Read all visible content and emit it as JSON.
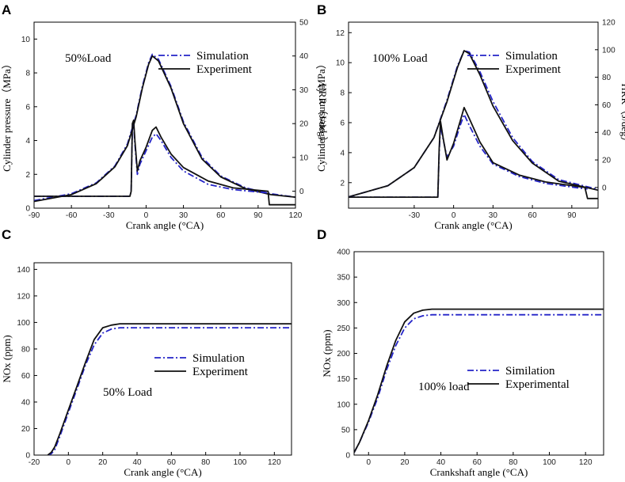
{
  "chart_data": [
    {
      "panel": "A",
      "type": "line",
      "annotation": "50%Load",
      "xlabel": "Crank angle (°CA)",
      "ylabel": "Cylinder pressure（MPa）",
      "y2label": "HRR（J/deg）",
      "xlim": [
        -90,
        120
      ],
      "xticks": [
        -90,
        -60,
        -30,
        0,
        30,
        60,
        90,
        120
      ],
      "ylim": [
        0,
        11
      ],
      "yticks": [
        0,
        2,
        4,
        6,
        8,
        10
      ],
      "y2lim": [
        -5,
        50
      ],
      "y2ticks": [
        0,
        10,
        20,
        30,
        40,
        50
      ],
      "legend": [
        "Simulation",
        "Experiment"
      ],
      "colors": {
        "Simulation": "#2424c8",
        "Experiment": "#111111"
      },
      "series": [
        {
          "name": "Simulation",
          "axis": "left",
          "style": "dashdot",
          "x": [
            -90,
            -60,
            -40,
            -25,
            -15,
            -8,
            -3,
            2,
            5,
            10,
            20,
            30,
            45,
            60,
            80,
            100,
            120
          ],
          "y": [
            0.45,
            0.85,
            1.5,
            2.5,
            3.8,
            5.5,
            7.2,
            8.6,
            9.1,
            8.8,
            7.2,
            5.1,
            3.0,
            1.9,
            1.2,
            0.85,
            0.65
          ]
        },
        {
          "name": "Experiment",
          "axis": "left",
          "style": "solid",
          "x": [
            -90,
            -60,
            -40,
            -25,
            -15,
            -8,
            -3,
            2,
            5,
            10,
            20,
            30,
            45,
            60,
            80,
            100,
            120
          ],
          "y": [
            0.4,
            0.8,
            1.45,
            2.45,
            3.7,
            5.4,
            7.1,
            8.5,
            9.0,
            8.7,
            7.1,
            5.0,
            2.9,
            1.85,
            1.15,
            0.8,
            0.65
          ]
        },
        {
          "name": "Simulation",
          "axis": "right",
          "style": "dashdot",
          "x": [
            -90,
            -20,
            -13,
            -12,
            -11,
            -10,
            -9,
            -7,
            -5,
            0,
            5,
            8,
            12,
            20,
            30,
            50,
            70,
            98,
            99
          ],
          "y": [
            -1.5,
            -1.5,
            -1.5,
            0,
            19,
            20,
            14,
            5,
            8,
            12,
            16,
            17,
            15,
            10,
            6,
            2,
            0.5,
            -0.5,
            -0.5
          ]
        },
        {
          "name": "Experiment",
          "axis": "right",
          "style": "solid",
          "x": [
            -90,
            -20,
            -13,
            -12,
            -11,
            -10,
            -9,
            -7,
            -5,
            0,
            5,
            8,
            12,
            20,
            30,
            50,
            70,
            98,
            99,
            120
          ],
          "y": [
            -1.5,
            -1.5,
            -1.5,
            0,
            20,
            21,
            15,
            6,
            9,
            13,
            18,
            19,
            16,
            11,
            7,
            3,
            1,
            0,
            -4,
            -4
          ]
        }
      ]
    },
    {
      "panel": "B",
      "type": "line",
      "annotation": "100% Load",
      "xlabel": "Crank angle (°CA)",
      "ylabel": "Cylinder pressure（MPa）",
      "y2label": "HRR（J/deg）",
      "xlim": [
        -80,
        110
      ],
      "xticks": [
        -30,
        0,
        30,
        60,
        90
      ],
      "ylim": [
        0.3,
        12.7
      ],
      "yticks": [
        2,
        4,
        6,
        8,
        10,
        12
      ],
      "y2lim": [
        -15,
        120
      ],
      "y2ticks": [
        0,
        20,
        40,
        60,
        80,
        100,
        120
      ],
      "legend": [
        "Simulation",
        "Experiment"
      ],
      "colors": {
        "Simulation": "#2424c8",
        "Experiment": "#111111"
      },
      "series": [
        {
          "name": "Simulation",
          "axis": "left",
          "style": "dashdot",
          "x": [
            -80,
            -50,
            -30,
            -15,
            -5,
            3,
            8,
            12,
            20,
            30,
            45,
            60,
            80,
            110
          ],
          "y": [
            1.05,
            1.8,
            3.0,
            5.0,
            7.5,
            9.8,
            10.8,
            10.7,
            9.4,
            7.4,
            5.0,
            3.4,
            2.2,
            1.55
          ]
        },
        {
          "name": "Experiment",
          "axis": "left",
          "style": "solid",
          "x": [
            -80,
            -50,
            -30,
            -15,
            -5,
            3,
            8,
            12,
            20,
            30,
            45,
            60,
            80,
            110
          ],
          "y": [
            1.05,
            1.8,
            3.0,
            5.0,
            7.4,
            9.7,
            10.8,
            10.6,
            9.2,
            7.1,
            4.8,
            3.3,
            2.1,
            1.5
          ]
        },
        {
          "name": "Simulation",
          "axis": "right",
          "style": "dashdot",
          "x": [
            -80,
            -15,
            -12,
            -11,
            -10,
            -8,
            -5,
            0,
            5,
            8,
            12,
            20,
            30,
            50,
            70,
            100,
            102
          ],
          "y": [
            -7,
            -7,
            -7,
            25,
            45,
            35,
            22,
            30,
            45,
            53,
            45,
            30,
            17,
            8,
            3,
            -1,
            -1
          ]
        },
        {
          "name": "Experiment",
          "axis": "right",
          "style": "solid",
          "x": [
            -80,
            -15,
            -12,
            -11,
            -10,
            -8,
            -5,
            0,
            5,
            8,
            12,
            20,
            30,
            50,
            70,
            100,
            102,
            110
          ],
          "y": [
            -7,
            -7,
            -7,
            28,
            48,
            36,
            20,
            32,
            48,
            58,
            50,
            33,
            18,
            9,
            4,
            0,
            -8,
            -8
          ]
        }
      ]
    },
    {
      "panel": "C",
      "type": "line",
      "annotation": "50% Load",
      "xlabel": "Crank angle (°CA)",
      "ylabel": "NOx (ppm)",
      "xlim": [
        -20,
        130
      ],
      "xticks": [
        -20,
        0,
        20,
        40,
        60,
        80,
        100,
        120
      ],
      "ylim": [
        0,
        145
      ],
      "yticks": [
        0,
        20,
        40,
        60,
        80,
        100,
        120,
        140
      ],
      "legend": [
        "Simulation",
        "Experiment"
      ],
      "colors": {
        "Simulation": "#2424c8",
        "Experiment": "#111111"
      },
      "series": [
        {
          "name": "Simulation",
          "style": "dashdot",
          "x": [
            -12,
            -10,
            -8,
            -5,
            0,
            5,
            10,
            15,
            20,
            25,
            30,
            40,
            60,
            130
          ],
          "y": [
            0,
            1,
            4,
            14,
            32,
            50,
            68,
            83,
            92,
            95,
            96,
            96,
            96,
            96
          ]
        },
        {
          "name": "Experiment",
          "style": "solid",
          "x": [
            -12,
            -10,
            -8,
            -5,
            0,
            5,
            10,
            15,
            20,
            25,
            30,
            40,
            60,
            130
          ],
          "y": [
            0,
            2,
            6,
            16,
            34,
            52,
            70,
            87,
            96,
            98,
            99,
            99,
            99,
            99
          ]
        }
      ]
    },
    {
      "panel": "D",
      "type": "line",
      "annotation": "100% load",
      "xlabel": "Crankshaft angle (°CA)",
      "ylabel": "NOx (ppm)",
      "xlim": [
        -8,
        130
      ],
      "xticks": [
        0,
        20,
        40,
        60,
        80,
        100,
        120
      ],
      "ylim": [
        0,
        400
      ],
      "yticks": [
        0,
        50,
        100,
        150,
        200,
        250,
        300,
        350,
        400
      ],
      "legend": [
        "Similation",
        "Experimental"
      ],
      "colors": {
        "Similation": "#2424c8",
        "Experimental": "#111111"
      },
      "series": [
        {
          "name": "Similation",
          "style": "dashdot",
          "x": [
            -8,
            -5,
            0,
            5,
            10,
            15,
            20,
            25,
            30,
            35,
            40,
            50,
            130
          ],
          "y": [
            5,
            25,
            65,
            112,
            168,
            215,
            250,
            268,
            274,
            276,
            276,
            276,
            276
          ]
        },
        {
          "name": "Experimental",
          "style": "solid",
          "x": [
            -8,
            -5,
            0,
            5,
            10,
            15,
            20,
            25,
            30,
            35,
            40,
            50,
            130
          ],
          "y": [
            5,
            25,
            68,
            118,
            175,
            225,
            262,
            279,
            285,
            287,
            287,
            287,
            287
          ]
        }
      ]
    }
  ]
}
